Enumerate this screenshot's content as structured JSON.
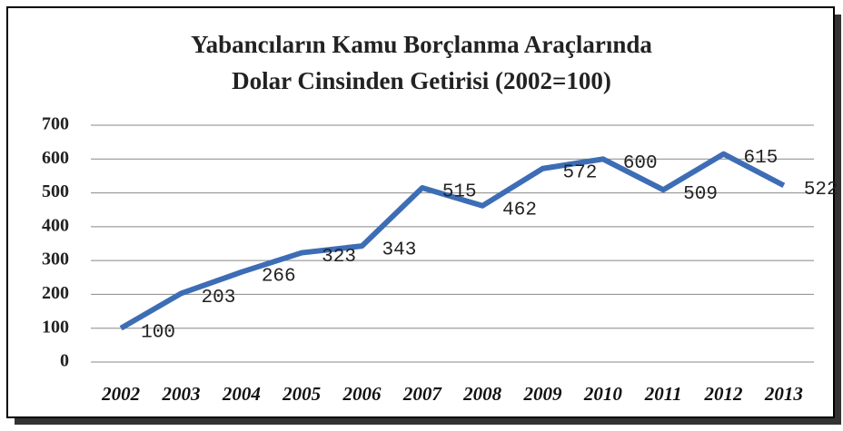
{
  "chart_data": {
    "type": "line",
    "title": [
      "Yabancıların Kamu Borçlanma Araçlarında",
      "Dolar Cinsinden Getirisi (2002=100)"
    ],
    "categories": [
      "2002",
      "2003",
      "2004",
      "2005",
      "2006",
      "2007",
      "2008",
      "2009",
      "2010",
      "2011",
      "2012",
      "2013"
    ],
    "values": [
      100,
      203,
      266,
      323,
      343,
      515,
      462,
      572,
      600,
      509,
      615,
      522
    ],
    "color": "#3d6db5",
    "ylim": [
      0,
      700
    ],
    "yticks": [
      0,
      100,
      200,
      300,
      400,
      500,
      600,
      700
    ],
    "grid": true
  }
}
